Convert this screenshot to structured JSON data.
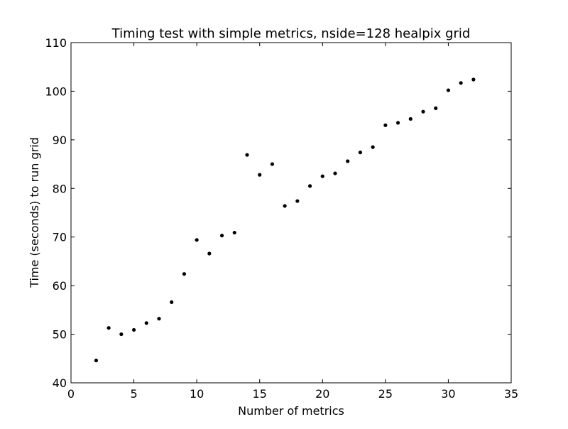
{
  "chart_data": {
    "type": "scatter",
    "title": "Timing test with simple metrics, nside=128 healpix grid",
    "xlabel": "Number of metrics",
    "ylabel": "Time (seconds) to run grid",
    "xlim": [
      0,
      35
    ],
    "ylim": [
      40,
      110
    ],
    "xticks": [
      0,
      5,
      10,
      15,
      20,
      25,
      30,
      35
    ],
    "yticks": [
      40,
      50,
      60,
      70,
      80,
      90,
      100,
      110
    ],
    "xtick_labels": [
      "0",
      "5",
      "10",
      "15",
      "20",
      "25",
      "30",
      "35"
    ],
    "ytick_labels": [
      "40",
      "50",
      "60",
      "70",
      "80",
      "90",
      "100",
      "110"
    ],
    "grid": false,
    "legend": false,
    "marker_color": "#000000",
    "x": [
      2,
      3,
      4,
      5,
      6,
      7,
      8,
      9,
      10,
      11,
      12,
      13,
      14,
      15,
      16,
      17,
      18,
      19,
      20,
      21,
      22,
      23,
      24,
      25,
      26,
      27,
      28,
      29,
      30,
      31,
      32
    ],
    "y": [
      44.6,
      51.3,
      50.0,
      50.9,
      52.3,
      53.2,
      56.6,
      62.4,
      69.4,
      66.6,
      70.3,
      70.9,
      86.9,
      82.8,
      85.0,
      76.4,
      77.4,
      80.5,
      82.5,
      83.1,
      85.6,
      87.4,
      88.5,
      93.0,
      93.5,
      94.3,
      95.8,
      96.5,
      100.2,
      101.7,
      102.4
    ]
  }
}
